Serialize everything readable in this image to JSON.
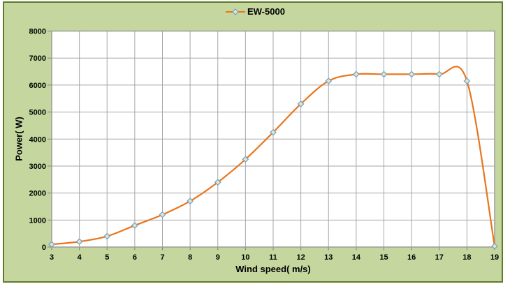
{
  "chart": {
    "legend_label": "EW-5000"
  },
  "chart_data": {
    "type": "line",
    "title": "",
    "xlabel": "Wind speed( m/s)",
    "ylabel": "Power( W)",
    "x": [
      3,
      4,
      5,
      6,
      7,
      8,
      9,
      10,
      11,
      12,
      13,
      14,
      15,
      16,
      17,
      18,
      19
    ],
    "series": [
      {
        "name": "EW-5000",
        "values": [
          100,
          200,
          400,
          800,
          1200,
          1700,
          2400,
          3250,
          4250,
          5300,
          6150,
          6400,
          6400,
          6400,
          6400,
          6150,
          30
        ]
      }
    ],
    "xlim": [
      3,
      19
    ],
    "ylim": [
      0,
      8000
    ],
    "y_ticks": [
      0,
      1000,
      2000,
      3000,
      4000,
      5000,
      6000,
      7000,
      8000
    ],
    "grid": true,
    "smooth": true,
    "legend_position": "top-center",
    "marker_shape": "diamond",
    "colors": {
      "line": "#e8761d",
      "marker_stroke": "#7ca1c2",
      "marker_fill": "#dde8cf",
      "chart_background": "#c5d79e",
      "chart_border": "#5f7a28",
      "plot_background": "#ffffff",
      "gridline": "#a6a6a6",
      "plot_border": "#9b9b9b",
      "tick": "#7f7f7f",
      "text": "#000000"
    }
  }
}
